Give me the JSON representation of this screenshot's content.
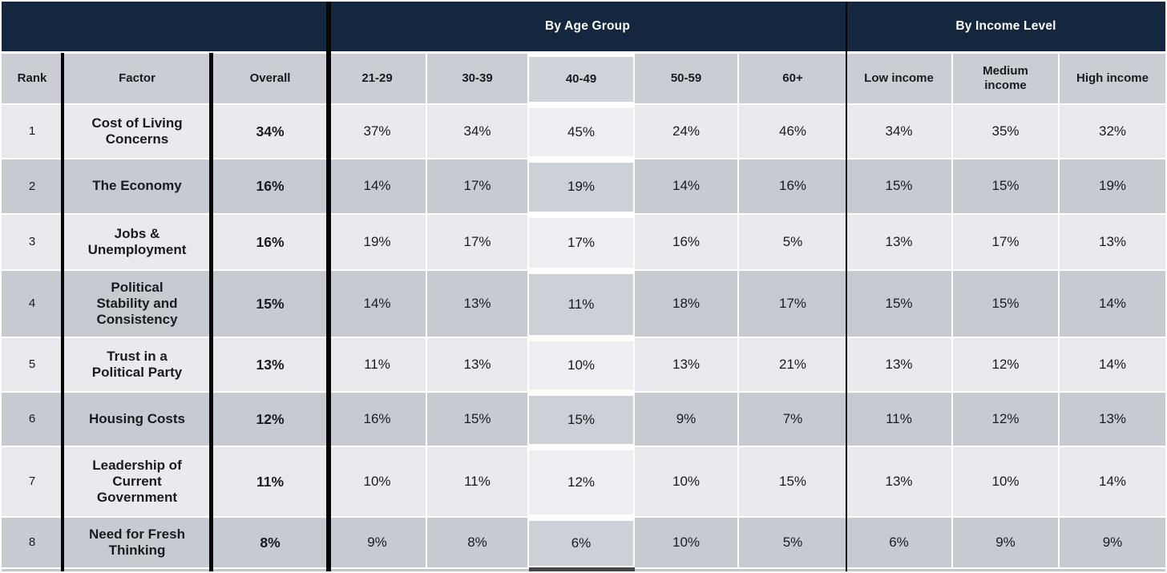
{
  "chart_data": {
    "type": "table",
    "group_headers": [
      {
        "label": "By Age Group",
        "spans_columns": [
          "21-29",
          "30-39",
          "40-49",
          "50-59",
          "60+"
        ]
      },
      {
        "label": "By Income Level",
        "spans_columns": [
          "Low income",
          "Medium income",
          "High income"
        ]
      }
    ],
    "columns": [
      "Rank",
      "Factor",
      "Overall",
      "21-29",
      "30-39",
      "40-49",
      "50-59",
      "60+",
      "Low income",
      "Medium income",
      "High income"
    ],
    "highlighted_column": "40-49",
    "rows": [
      {
        "rank": "1",
        "factor": "Cost of Living Concerns",
        "overall": "34%",
        "values": [
          "37%",
          "34%",
          "45%",
          "24%",
          "46%",
          "34%",
          "35%",
          "32%"
        ]
      },
      {
        "rank": "2",
        "factor": "The Economy",
        "overall": "16%",
        "values": [
          "14%",
          "17%",
          "19%",
          "14%",
          "16%",
          "15%",
          "15%",
          "19%"
        ]
      },
      {
        "rank": "3",
        "factor": "Jobs & Unemployment",
        "overall": "16%",
        "values": [
          "19%",
          "17%",
          "17%",
          "16%",
          "5%",
          "13%",
          "17%",
          "13%"
        ]
      },
      {
        "rank": "4",
        "factor": "Political Stability and Consistency",
        "overall": "15%",
        "values": [
          "14%",
          "13%",
          "11%",
          "18%",
          "17%",
          "15%",
          "15%",
          "14%"
        ]
      },
      {
        "rank": "5",
        "factor": "Trust in a Political Party",
        "overall": "13%",
        "values": [
          "11%",
          "13%",
          "10%",
          "13%",
          "21%",
          "13%",
          "12%",
          "14%"
        ]
      },
      {
        "rank": "6",
        "factor": "Housing Costs",
        "overall": "12%",
        "values": [
          "16%",
          "15%",
          "15%",
          "9%",
          "7%",
          "11%",
          "12%",
          "13%"
        ]
      },
      {
        "rank": "7",
        "factor": "Leadership of Current Government",
        "overall": "11%",
        "values": [
          "10%",
          "11%",
          "12%",
          "10%",
          "15%",
          "13%",
          "10%",
          "14%"
        ]
      },
      {
        "rank": "8",
        "factor": "Need for Fresh Thinking",
        "overall": "8%",
        "values": [
          "9%",
          "8%",
          "6%",
          "10%",
          "5%",
          "6%",
          "9%",
          "9%"
        ]
      }
    ],
    "colors": {
      "band_navy": "#14273f",
      "header_gray": "#cacdd4",
      "row_light": "#e8eaee",
      "row_dark": "#c6cbd2",
      "highlight_light": "#eceef2",
      "highlight_dark": "#ccd0d7",
      "divider_black": "#060606",
      "highlight_bottom_bar": "#454545",
      "text": "#191c1f",
      "band_text": "#ffffff"
    }
  }
}
